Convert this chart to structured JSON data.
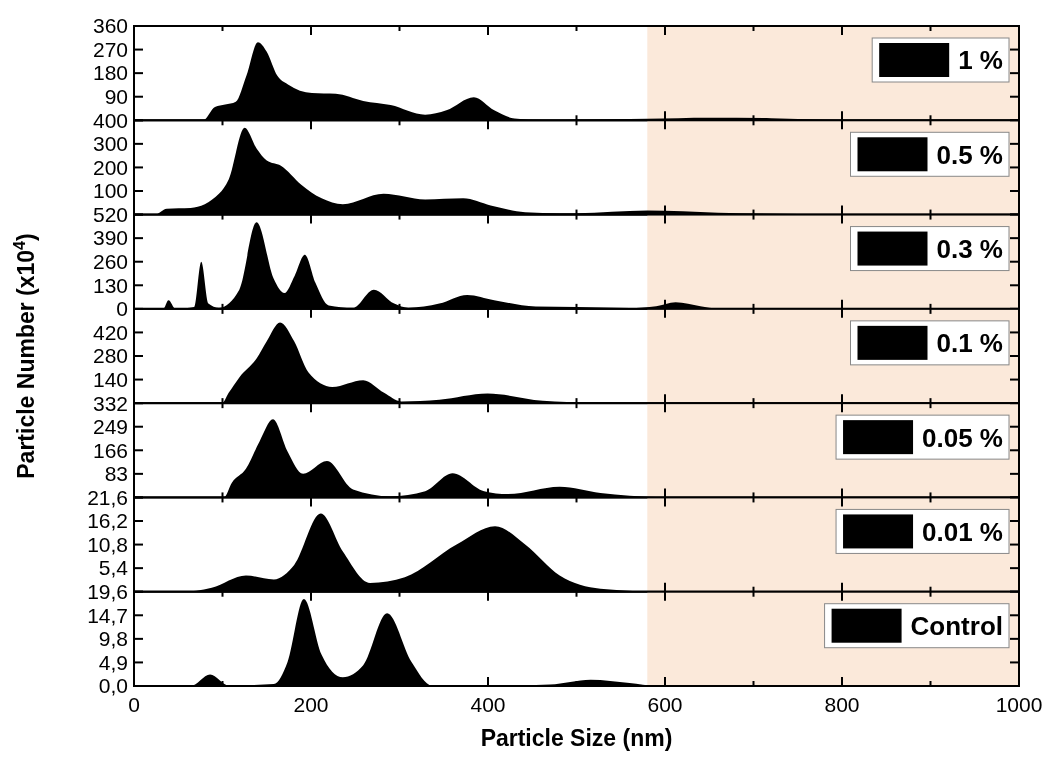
{
  "chart_data": [
    {
      "type": "area",
      "x": [
        0,
        78,
        91.5,
        103,
        115,
        127,
        140,
        150,
        162,
        174,
        201,
        228,
        259,
        290,
        329,
        353,
        384,
        407,
        430,
        462,
        500,
        580,
        650,
        720,
        780,
        850,
        1000
      ],
      "series": [
        {
          "name": "1 %",
          "color": "#000000",
          "values": [
            0,
            0,
            51,
            60,
            71,
            170,
            298,
            262,
            170,
            137,
            104,
            101,
            74,
            58,
            21,
            38,
            88,
            38,
            7,
            1,
            2,
            6,
            10,
            8,
            2,
            0,
            0
          ]
        }
      ],
      "xlim": [
        0,
        1000
      ],
      "xticks": [
        0,
        {
          "value": 100,
          "label": null
        },
        200,
        {
          "value": 300,
          "label": null
        },
        400,
        {
          "value": 500,
          "label": null
        },
        600,
        {
          "value": 700,
          "label": null
        },
        800,
        {
          "value": 900,
          "label": null
        },
        1000
      ],
      "ylim": [
        0,
        360
      ],
      "yticks": [
        {
          "value": 0,
          "label": null
        },
        90,
        180,
        270,
        360
      ],
      "tick_labels": "y",
      "legend": "top right",
      "bands": [
        {
          "axis": "x",
          "from": 580,
          "to": 1000,
          "color": "#fbe9da"
        }
      ]
    },
    {
      "type": "area",
      "x": [
        0,
        23.6,
        37,
        64,
        96,
        107,
        125,
        138.5,
        150,
        166,
        189,
        212,
        236,
        282,
        329,
        372,
        403,
        442,
        481,
        500,
        580,
        660,
        750,
        800,
        1000
      ],
      "series": [
        {
          "name": "0.5 %",
          "color": "#000000",
          "values": [
            0,
            0,
            25,
            28,
            88,
            149,
            368,
            280,
            229,
            207,
            127,
            69,
            44,
            88,
            64,
            69,
            39,
            10,
            6,
            6,
            17,
            8,
            2,
            0,
            0
          ]
        }
      ],
      "xlim": [
        0,
        1000
      ],
      "xticks": [
        0,
        {
          "value": 100,
          "label": null
        },
        200,
        {
          "value": 300,
          "label": null
        },
        400,
        {
          "value": 500,
          "label": null
        },
        600,
        {
          "value": 700,
          "label": null
        },
        800,
        {
          "value": 900,
          "label": null
        },
        1000
      ],
      "ylim": [
        0,
        400
      ],
      "yticks": [
        {
          "value": 0,
          "label": null
        },
        100,
        200,
        300,
        400
      ],
      "tick_labels": "y",
      "legend": "top right",
      "bands": [
        {
          "axis": "x",
          "from": 580,
          "to": 1000,
          "color": "#fbe9da"
        }
      ]
    },
    {
      "type": "area",
      "x": [
        0,
        33,
        39,
        47,
        68,
        76,
        84,
        96,
        119,
        138.5,
        158,
        170,
        181.6,
        193,
        205,
        220,
        247.5,
        271,
        294,
        310,
        345,
        376.5,
        407,
        454,
        500.5,
        560,
        590,
        612,
        640,
        660,
        700,
        1000
      ],
      "series": [
        {
          "name": "0.3 %",
          "color": "#000000",
          "values": [
            0,
            0,
            48,
            0,
            10,
            260,
            29,
            6,
            106,
            478,
            164,
            87,
            183,
            299,
            144,
            19,
            6,
            106,
            29,
            6,
            29,
            77,
            48,
            13,
            10,
            5,
            15,
            37,
            15,
            2,
            0,
            0
          ]
        }
      ],
      "xlim": [
        0,
        1000
      ],
      "xticks": [
        0,
        {
          "value": 100,
          "label": null
        },
        200,
        {
          "value": 300,
          "label": null
        },
        400,
        {
          "value": 500,
          "label": null
        },
        600,
        {
          "value": 700,
          "label": null
        },
        800,
        {
          "value": 900,
          "label": null
        },
        1000
      ],
      "ylim": [
        0,
        520
      ],
      "yticks": [
        0,
        130,
        260,
        390,
        520
      ],
      "tick_labels": "y",
      "legend": "top right",
      "bands": [
        {
          "axis": "x",
          "from": 580,
          "to": 1000,
          "color": "#fbe9da"
        }
      ]
    },
    {
      "type": "area",
      "ylabel": "Particle Number (x10$^{4}$)",
      "x": [
        0,
        99.5,
        107,
        119,
        138.5,
        150,
        165,
        181,
        197,
        224,
        259,
        282.5,
        302,
        345,
        399.5,
        462,
        516,
        600,
        1000
      ],
      "series": [
        {
          "name": "0.1 %",
          "color": "#000000",
          "values": [
            0,
            0,
            61,
            153,
            265,
            367,
            479,
            367,
            183,
            96,
            136,
            61,
            10,
            20,
            57,
            14,
            4,
            0,
            0
          ]
        }
      ],
      "xlim": [
        0,
        1000
      ],
      "xticks": [
        0,
        {
          "value": 100,
          "label": null
        },
        200,
        {
          "value": 300,
          "label": null
        },
        400,
        {
          "value": 500,
          "label": null
        },
        600,
        {
          "value": 700,
          "label": null
        },
        800,
        {
          "value": 900,
          "label": null
        },
        1000
      ],
      "ylim": [
        0,
        560
      ],
      "yticks": [
        {
          "value": 0,
          "label": null
        },
        140,
        280,
        420
      ],
      "tick_labels": "y",
      "legend": "top right",
      "bands": [
        {
          "axis": "x",
          "from": 580,
          "to": 1000,
          "color": "#fbe9da"
        }
      ]
    },
    {
      "type": "area",
      "x": [
        0,
        101.5,
        110.6,
        126.5,
        142,
        157,
        173.5,
        191,
        218,
        247.5,
        290,
        329,
        360,
        395.5,
        422.6,
        481,
        527,
        560,
        600,
        650,
        1000
      ],
      "series": [
        {
          "name": "0.05 %",
          "color": "#000000",
          "values": [
            0,
            0,
            52,
            101,
            198,
            275,
            162,
            83,
            128,
            28,
            4,
            22,
            85,
            22,
            12,
            38,
            16,
            6,
            1,
            0,
            0
          ]
        }
      ],
      "xlim": [
        0,
        1000
      ],
      "xticks": [
        0,
        {
          "value": 100,
          "label": null
        },
        200,
        {
          "value": 300,
          "label": null
        },
        400,
        {
          "value": 500,
          "label": null
        },
        600,
        {
          "value": 700,
          "label": null
        },
        800,
        {
          "value": 900,
          "label": null
        },
        1000
      ],
      "ylim": [
        0,
        332
      ],
      "yticks": [
        {
          "value": 0,
          "label": null
        },
        83,
        166,
        249,
        332
      ],
      "tick_labels": "y",
      "legend": "top right",
      "bands": [
        {
          "axis": "x",
          "from": 580,
          "to": 1000,
          "color": "#fbe9da"
        }
      ]
    },
    {
      "type": "area",
      "x": [
        0,
        52.8,
        87.8,
        126.5,
        158,
        181,
        211,
        236,
        266.7,
        306,
        364.5,
        408,
        442,
        481,
        527,
        600,
        1000
      ],
      "series": [
        {
          "name": "0.01 %",
          "color": "#000000",
          "values": [
            0,
            0,
            0.9,
            3.7,
            2.8,
            6.1,
            17.9,
            9.2,
            2.0,
            3.3,
            10.8,
            15.0,
            10.8,
            3.7,
            0.7,
            0,
            0
          ]
        }
      ],
      "xlim": [
        0,
        1000
      ],
      "xticks": [
        0,
        {
          "value": 100,
          "label": null
        },
        200,
        {
          "value": 300,
          "label": null
        },
        400,
        {
          "value": 500,
          "label": null
        },
        600,
        {
          "value": 700,
          "label": null
        },
        800,
        {
          "value": 900,
          "label": null
        },
        1000
      ],
      "ylim": [
        0,
        21.6
      ],
      "yticks": [
        {
          "value": 0,
          "label": null
        },
        {
          "value": 5.4,
          "label": "5,4"
        },
        {
          "value": 10.8,
          "label": "10,8"
        },
        {
          "value": 16.2,
          "label": "16,2"
        },
        {
          "value": 21.6,
          "label": "21,6"
        }
      ],
      "tick_labels": "y",
      "legend": "top right",
      "bands": [
        {
          "axis": "x",
          "from": 580,
          "to": 1000,
          "color": "#fbe9da"
        }
      ]
    },
    {
      "type": "area",
      "xlabel": "Particle Size (nm)",
      "x": [
        0,
        64,
        86,
        107,
        158,
        173.5,
        192,
        212,
        236,
        259,
        286,
        313.6,
        336.7,
        384,
        470,
        516,
        560,
        590,
        1000
      ],
      "series": [
        {
          "name": "Control",
          "color": "#000000",
          "values": [
            0,
            0,
            2.4,
            0.1,
            0.4,
            5.0,
            18.1,
            6.5,
            1.8,
            4.3,
            15.1,
            5.0,
            0.1,
            0,
            0.3,
            1.3,
            0.6,
            0,
            0
          ]
        }
      ],
      "xlim": [
        0,
        1000
      ],
      "xticks": [
        0,
        {
          "value": 100,
          "label": null
        },
        200,
        {
          "value": 300,
          "label": null
        },
        400,
        {
          "value": 500,
          "label": null
        },
        600,
        {
          "value": 700,
          "label": null
        },
        800,
        {
          "value": 900,
          "label": null
        },
        1000
      ],
      "ylim": [
        0,
        19.6
      ],
      "yticks": [
        {
          "value": 0,
          "label": "0,0"
        },
        {
          "value": 4.9,
          "label": "4,9"
        },
        {
          "value": 9.8,
          "label": "9,8"
        },
        {
          "value": 14.7,
          "label": "14,7"
        },
        {
          "value": 19.6,
          "label": "19,6"
        }
      ],
      "legend": "top right",
      "bands": [
        {
          "axis": "x",
          "from": 580,
          "to": 1000,
          "color": "#fbe9da"
        }
      ]
    }
  ]
}
